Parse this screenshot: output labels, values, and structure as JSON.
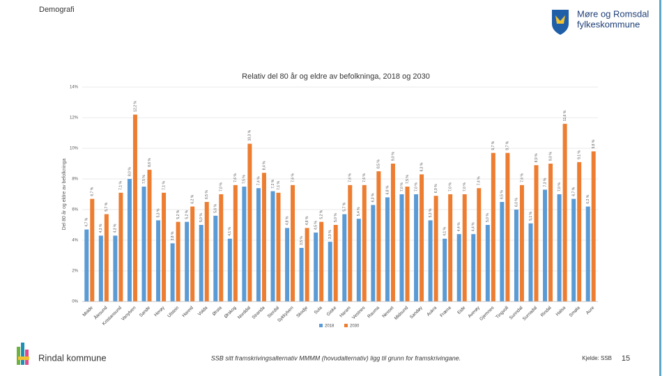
{
  "slide": {
    "section": "Demografi",
    "logo_text_1": "Møre og Romsdal",
    "logo_text_2": "fylkeskommune",
    "municipality": "Rindal kommune",
    "footnote": "SSB sitt framskrivingsalternativ MMMM (hovudalternativ) ligg til grunn for framskrivingane.",
    "source": "Kjelde: SSB",
    "page_number": "15"
  },
  "chart_data": {
    "type": "bar",
    "title": "Relativ del 80 år og eldre av befolkninga, 2018 og 2030",
    "y_label": "Del 80 år og eldre av befolkninga",
    "categories": [
      "Molde",
      "Ålesund",
      "Kristiansund",
      "Vanylven",
      "Sande",
      "Herøy",
      "Ulstein",
      "Hareid",
      "Volda",
      "Ørsta",
      "Ørskog",
      "Norddal",
      "Stranda",
      "Stordal",
      "Sykkylven",
      "Skodje",
      "Sula",
      "Giske",
      "Haram",
      "Vestnes",
      "Rauma",
      "Nesset",
      "Midsund",
      "Sandøy",
      "Aukra",
      "Fræna",
      "Eide",
      "Averøy",
      "Gjemnes",
      "Tingvoll",
      "Sunndal",
      "Surnadal",
      "Rindal",
      "Halsa",
      "Smøla",
      "Aure"
    ],
    "series": [
      {
        "name": "2018",
        "color": "#5b9bd5",
        "values": [
          4.7,
          4.3,
          4.3,
          8.0,
          7.5,
          5.3,
          3.8,
          5.2,
          5.0,
          5.6,
          4.1,
          7.5,
          7.4,
          7.2,
          4.8,
          3.5,
          4.5,
          3.9,
          5.7,
          5.4,
          6.3,
          6.8,
          7.0,
          7.0,
          5.3,
          4.1,
          4.4,
          4.4,
          5.0,
          6.5,
          6.0,
          5.1,
          7.3,
          7.0,
          6.7,
          6.2
        ],
        "value_labels": [
          "4,7 %",
          "4,3 %",
          "4,3 %",
          "8,0 %",
          "7,5 %",
          "5,3 %",
          "3,8 %",
          "5,2 %",
          "5,0 %",
          "5,6 %",
          "4,1 %",
          "7,5 %",
          "7,4 %",
          "7,2 %",
          "4,8 %",
          "3,5 %",
          "4,5 %",
          "3,9 %",
          "5,7 %",
          "5,4 %",
          "6,3 %",
          "6,8 %",
          "7,0 %",
          "7,0 %",
          "5,3 %",
          "4,1 %",
          "4,4 %",
          "4,4 %",
          "5,0 %",
          "6,5 %",
          "6,0 %",
          "5,1 %",
          "7,3 %",
          "7,0 %",
          "6,7 %",
          "6,2 %"
        ]
      },
      {
        "name": "2030",
        "color": "#ed7d31",
        "values": [
          6.7,
          5.7,
          7.1,
          12.2,
          8.6,
          7.1,
          5.2,
          6.2,
          6.5,
          7.0,
          7.6,
          10.3,
          8.4,
          7.1,
          7.6,
          4.8,
          5.2,
          5.0,
          7.6,
          7.6,
          8.5,
          9.0,
          7.5,
          8.3,
          6.9,
          7.0,
          7.0,
          7.4,
          9.7,
          9.7,
          7.6,
          8.9,
          9.0,
          11.6,
          9.1,
          9.8
        ],
        "value_labels": [
          "6,7 %",
          "5,7 %",
          "7,1 %",
          "12,2 %",
          "8,6 %",
          "7,1 %",
          "5,2 %",
          "6,2 %",
          "6,5 %",
          "7,0 %",
          "7,6 %",
          "10,3 %",
          "8,4 %",
          "7,1 %",
          "7,6 %",
          "4,8 %",
          "5,2 %",
          "5,0 %",
          "7,6 %",
          "7,6 %",
          "8,5 %",
          "9,0 %",
          "7,5 %",
          "8,3 %",
          "6,9 %",
          "7,0 %",
          "7,0 %",
          "7,4 %",
          "9,7 %",
          "9,7 %",
          "7,6 %",
          "8,9 %",
          "9,0 %",
          "11,6 %",
          "9,1 %",
          "9,8 %"
        ]
      }
    ],
    "ylim": [
      0,
      14
    ],
    "yticks": [
      {
        "value": 0,
        "label": "0%"
      },
      {
        "value": 2,
        "label": "2%"
      },
      {
        "value": 4,
        "label": "4%"
      },
      {
        "value": 6,
        "label": "6%"
      },
      {
        "value": 8,
        "label": "8%"
      },
      {
        "value": 10,
        "label": "10%"
      },
      {
        "value": 12,
        "label": "12%"
      },
      {
        "value": 14,
        "label": "14%"
      }
    ],
    "grid": true,
    "legend": "bottom"
  }
}
